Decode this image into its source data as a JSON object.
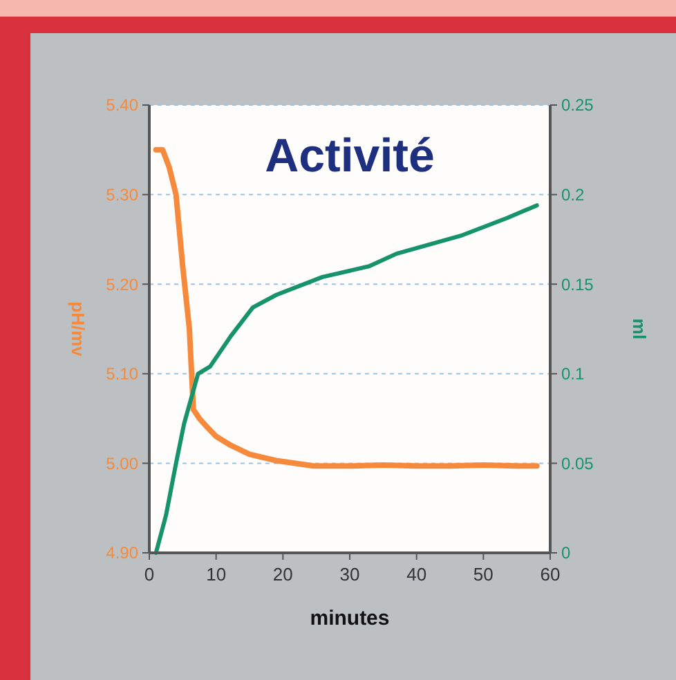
{
  "chart_data": {
    "type": "line",
    "title": "Activité",
    "xlabel": "minutes",
    "ylabel": "pH/mv",
    "y2label": "ml",
    "xlim": [
      0,
      60
    ],
    "xticks": [
      0,
      10,
      20,
      30,
      40,
      50,
      60
    ],
    "ylim": [
      4.9,
      5.4
    ],
    "yticks": [
      {
        "value": 4.9,
        "label": "4.90"
      },
      {
        "value": 5.0,
        "label": "5.00"
      },
      {
        "value": 5.1,
        "label": "5.10"
      },
      {
        "value": 5.2,
        "label": "5.20"
      },
      {
        "value": 5.3,
        "label": "5.30"
      },
      {
        "value": 5.4,
        "label": "5.40"
      }
    ],
    "y2lim": [
      0,
      0.25
    ],
    "y2ticks": [
      0,
      0.05,
      0.1,
      0.15,
      0.2,
      0.25
    ],
    "grid": "y",
    "series": [
      {
        "color": "#f58a3c",
        "x": [
          1,
          2,
          3,
          4,
          5,
          6,
          6.6,
          7.5,
          8.7,
          10,
          12.2,
          15,
          19,
          24.6,
          30,
          35,
          40,
          45,
          50,
          55,
          58
        ],
        "values": [
          5.35,
          5.35,
          5.33,
          5.3,
          5.22,
          5.15,
          5.06,
          5.05,
          5.04,
          5.03,
          5.02,
          5.01,
          5.003,
          4.997,
          4.997,
          4.998,
          4.997,
          4.997,
          4.998,
          4.997,
          4.997
        ]
      },
      {
        "color": "#16936a",
        "axis": "y2",
        "x": [
          1,
          2.5,
          4,
          5.2,
          7.3,
          9.1,
          12.2,
          15.5,
          19,
          25.9,
          32.9,
          37,
          46.6,
          53.6,
          58
        ],
        "values": [
          0,
          0.021,
          0.05,
          0.072,
          0.1,
          0.104,
          0.121,
          0.137,
          0.144,
          0.154,
          0.16,
          0.167,
          0.177,
          0.187,
          0.194
        ]
      }
    ]
  }
}
